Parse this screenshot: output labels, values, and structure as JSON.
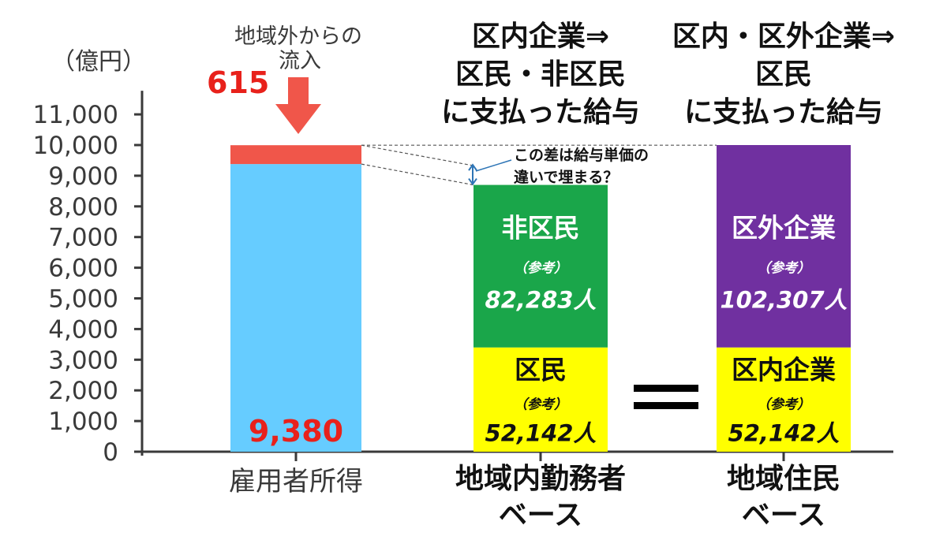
{
  "chart_data": {
    "type": "bar",
    "unit_label": "（億円）",
    "ylim": [
      0,
      11000
    ],
    "ytick_step": 1000,
    "bars": [
      {
        "category": "雇用者所得",
        "category_line2": "",
        "header": [],
        "segments": [
          {
            "value": 9380,
            "color": "#66ccff",
            "label": "",
            "note": "",
            "count": ""
          },
          {
            "value": 615,
            "color": "#f0564a",
            "label": "",
            "note": "",
            "count": ""
          }
        ]
      },
      {
        "category": "地域内勤務者",
        "category_line2": "ベース",
        "header": [
          "区内企業⇒",
          "区民・非区民",
          "に支払った給与"
        ],
        "segments": [
          {
            "value": 3400,
            "color": "#ffff00",
            "label": "区民",
            "note": "（参考）",
            "count": "52,142人"
          },
          {
            "value": 5300,
            "color": "#1aa64a",
            "label": "非区民",
            "note": "（参考）",
            "count": "82,283人"
          }
        ]
      },
      {
        "category": "地域住民",
        "category_line2": "ベース",
        "header": [
          "区内・区外企業⇒",
          "区民",
          "に支払った給与"
        ],
        "segments": [
          {
            "value": 3400,
            "color": "#ffff00",
            "label": "区内企業",
            "note": "（参考）",
            "count": "52,142人"
          },
          {
            "value": 6600,
            "color": "#7030a0",
            "label": "区外企業",
            "note": "（参考）",
            "count": "102,307人"
          }
        ]
      }
    ],
    "base_value_label": "9,380",
    "inflow": {
      "value_label": "615",
      "text": [
        "地域外からの",
        "流入"
      ]
    },
    "gap_note": [
      "この差は給与単価の",
      "違いで埋まる？"
    ],
    "equals_sign": "＝",
    "colors": {
      "red_label": "#e8211b",
      "arrow": "#f0564a",
      "axis": "#3a3a3a"
    }
  }
}
